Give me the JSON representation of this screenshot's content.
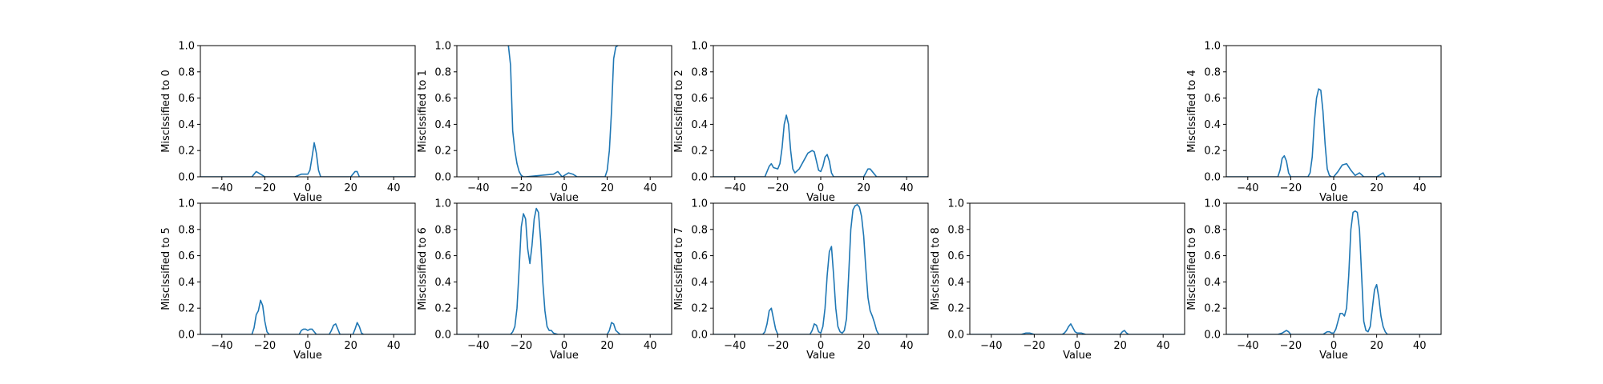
{
  "chart_data": [
    {
      "type": "line",
      "xlabel": "Value",
      "ylabel": "Misclssified to 0",
      "xlim": [
        -50,
        50
      ],
      "ylim": [
        0,
        1
      ],
      "xticks": [
        -40,
        -20,
        0,
        20,
        40
      ],
      "yticks": [
        0.0,
        0.2,
        0.4,
        0.6,
        0.8,
        1.0
      ],
      "color": "#1f77b4",
      "x": [
        -50,
        -26,
        -24,
        -22,
        -20,
        -6,
        -3,
        0,
        1,
        2,
        3,
        4,
        5,
        6,
        8,
        20,
        22,
        23,
        24,
        50
      ],
      "y": [
        0,
        0,
        0.04,
        0.02,
        0,
        0,
        0.02,
        0.02,
        0.05,
        0.15,
        0.26,
        0.18,
        0.05,
        0,
        0,
        0,
        0.04,
        0.04,
        0,
        0
      ]
    },
    {
      "type": "line",
      "xlabel": "Value",
      "ylabel": "Misclssified to 1",
      "xlim": [
        -50,
        50
      ],
      "ylim": [
        0,
        1
      ],
      "xticks": [
        -40,
        -20,
        0,
        20,
        40
      ],
      "yticks": [
        0.0,
        0.2,
        0.4,
        0.6,
        0.8,
        1.0
      ],
      "color": "#1f77b4",
      "x": [
        -26,
        -25,
        -24,
        -23,
        -22,
        -21,
        -20,
        -19,
        -18,
        -5,
        -3,
        -1,
        2,
        4,
        6,
        19,
        20,
        21,
        22,
        23,
        24,
        25
      ],
      "y": [
        1.0,
        0.85,
        0.35,
        0.2,
        0.1,
        0.04,
        0.01,
        0,
        0,
        0.02,
        0.04,
        0,
        0.03,
        0.02,
        0,
        0,
        0.05,
        0.2,
        0.5,
        0.9,
        0.99,
        1.0
      ]
    },
    {
      "type": "line",
      "xlabel": "Value",
      "ylabel": "Misclssified to 2",
      "xlim": [
        -50,
        50
      ],
      "ylim": [
        0,
        1
      ],
      "xticks": [
        -40,
        -20,
        0,
        20,
        40
      ],
      "yticks": [
        0.0,
        0.2,
        0.4,
        0.6,
        0.8,
        1.0
      ],
      "color": "#1f77b4",
      "x": [
        -50,
        -26,
        -24,
        -23,
        -22,
        -20,
        -19,
        -18,
        -17,
        -16,
        -15,
        -14,
        -13,
        -12,
        -10,
        -8,
        -6,
        -4,
        -3,
        -2,
        -1,
        0,
        1,
        2,
        3,
        4,
        5,
        6,
        8,
        20,
        21,
        22,
        23,
        24,
        26,
        50
      ],
      "y": [
        0,
        0,
        0.08,
        0.1,
        0.07,
        0.06,
        0.1,
        0.22,
        0.4,
        0.47,
        0.4,
        0.2,
        0.06,
        0.03,
        0.06,
        0.12,
        0.18,
        0.2,
        0.19,
        0.12,
        0.05,
        0.04,
        0.08,
        0.15,
        0.17,
        0.12,
        0.03,
        0,
        0,
        0,
        0.03,
        0.06,
        0.06,
        0.04,
        0,
        0
      ]
    },
    {
      "type": "line",
      "xlabel": "Value",
      "ylabel": "Misclssified to 4",
      "xlim": [
        -50,
        50
      ],
      "ylim": [
        0,
        1
      ],
      "xticks": [
        -40,
        -20,
        0,
        20,
        40
      ],
      "yticks": [
        0.0,
        0.2,
        0.4,
        0.6,
        0.8,
        1.0
      ],
      "color": "#1f77b4",
      "x": [
        -50,
        -26,
        -25,
        -24,
        -23,
        -22,
        -21,
        -20,
        -12,
        -11,
        -10,
        -9,
        -8,
        -7,
        -6,
        -5,
        -4,
        -3,
        -2,
        -1,
        0,
        2,
        4,
        6,
        8,
        10,
        12,
        14,
        20,
        22,
        23,
        24,
        50
      ],
      "y": [
        0,
        0,
        0.05,
        0.14,
        0.16,
        0.12,
        0.03,
        0,
        0,
        0.03,
        0.15,
        0.42,
        0.6,
        0.67,
        0.66,
        0.5,
        0.25,
        0.06,
        0.01,
        0,
        0,
        0.04,
        0.09,
        0.1,
        0.05,
        0.01,
        0.03,
        0,
        0,
        0.02,
        0.03,
        0,
        0
      ]
    },
    {
      "type": "line",
      "xlabel": "Value",
      "ylabel": "Misclssified to 5",
      "xlim": [
        -50,
        50
      ],
      "ylim": [
        0,
        1
      ],
      "xticks": [
        -40,
        -20,
        0,
        20,
        40
      ],
      "yticks": [
        0.0,
        0.2,
        0.4,
        0.6,
        0.8,
        1.0
      ],
      "color": "#1f77b4",
      "x": [
        -50,
        -26,
        -25,
        -24,
        -23,
        -22,
        -21,
        -20,
        -19,
        -18,
        -4,
        -3,
        -2,
        -1,
        0,
        1,
        2,
        3,
        4,
        10,
        11,
        12,
        13,
        14,
        15,
        21,
        22,
        23,
        24,
        25,
        26,
        50
      ],
      "y": [
        0,
        0,
        0.05,
        0.15,
        0.18,
        0.26,
        0.22,
        0.1,
        0.02,
        0,
        0,
        0.03,
        0.04,
        0.04,
        0.03,
        0.04,
        0.04,
        0.02,
        0,
        0,
        0.03,
        0.07,
        0.08,
        0.04,
        0,
        0,
        0.04,
        0.09,
        0.06,
        0.01,
        0,
        0
      ]
    },
    {
      "type": "line",
      "xlabel": "Value",
      "ylabel": "Misclssified to 6",
      "xlim": [
        -50,
        50
      ],
      "ylim": [
        0,
        1
      ],
      "xticks": [
        -40,
        -20,
        0,
        20,
        40
      ],
      "yticks": [
        0.0,
        0.2,
        0.4,
        0.6,
        0.8,
        1.0
      ],
      "color": "#1f77b4",
      "x": [
        -50,
        -25,
        -24,
        -23,
        -22,
        -21,
        -20,
        -19,
        -18,
        -17,
        -16,
        -15,
        -14,
        -13,
        -12,
        -11,
        -10,
        -9,
        -8,
        -7,
        -6,
        -5,
        -3,
        20,
        21,
        22,
        23,
        24,
        26,
        50
      ],
      "y": [
        0,
        0,
        0.02,
        0.06,
        0.2,
        0.5,
        0.82,
        0.92,
        0.88,
        0.65,
        0.54,
        0.68,
        0.88,
        0.96,
        0.93,
        0.72,
        0.4,
        0.18,
        0.06,
        0.03,
        0.03,
        0.01,
        0,
        0,
        0.03,
        0.09,
        0.08,
        0.03,
        0,
        0
      ]
    },
    {
      "type": "line",
      "xlabel": "Value",
      "ylabel": "Misclssified to 7",
      "xlim": [
        -50,
        50
      ],
      "ylim": [
        0,
        1
      ],
      "xticks": [
        -40,
        -20,
        0,
        20,
        40
      ],
      "yticks": [
        0.0,
        0.2,
        0.4,
        0.6,
        0.8,
        1.0
      ],
      "color": "#1f77b4",
      "x": [
        -50,
        -27,
        -26,
        -25,
        -24,
        -23,
        -22,
        -21,
        -20,
        -5,
        -4,
        -3,
        -2,
        -1,
        0,
        1,
        2,
        3,
        4,
        5,
        6,
        7,
        8,
        9,
        10,
        11,
        12,
        13,
        14,
        15,
        16,
        17,
        18,
        19,
        20,
        21,
        22,
        23,
        24,
        25,
        26,
        27,
        50
      ],
      "y": [
        0,
        0,
        0.02,
        0.08,
        0.18,
        0.2,
        0.12,
        0.04,
        0,
        0,
        0.03,
        0.08,
        0.07,
        0.02,
        0.01,
        0.06,
        0.2,
        0.45,
        0.63,
        0.67,
        0.45,
        0.2,
        0.06,
        0.02,
        0.01,
        0.03,
        0.12,
        0.45,
        0.8,
        0.95,
        0.98,
        0.99,
        0.97,
        0.9,
        0.75,
        0.5,
        0.28,
        0.18,
        0.14,
        0.09,
        0.03,
        0,
        0
      ]
    },
    {
      "type": "line",
      "xlabel": "Value",
      "ylabel": "Misclssified to 8",
      "xlim": [
        -50,
        50
      ],
      "ylim": [
        0,
        1
      ],
      "xticks": [
        -40,
        -20,
        0,
        20,
        40
      ],
      "yticks": [
        0.0,
        0.2,
        0.4,
        0.6,
        0.8,
        1.0
      ],
      "color": "#1f77b4",
      "x": [
        -50,
        -26,
        -24,
        -22,
        -20,
        -7,
        -6,
        -5,
        -4,
        -3,
        -2,
        -1,
        0,
        2,
        4,
        20,
        21,
        22,
        23,
        24,
        50
      ],
      "y": [
        0,
        0,
        0.01,
        0.01,
        0,
        0,
        0.01,
        0.03,
        0.06,
        0.08,
        0.05,
        0.02,
        0.01,
        0.01,
        0,
        0,
        0.02,
        0.03,
        0.01,
        0,
        0
      ]
    },
    {
      "type": "line",
      "xlabel": "Value",
      "ylabel": "Misclssified to 9",
      "xlim": [
        -50,
        50
      ],
      "ylim": [
        0,
        1
      ],
      "xticks": [
        -40,
        -20,
        0,
        20,
        40
      ],
      "yticks": [
        0.0,
        0.2,
        0.4,
        0.6,
        0.8,
        1.0
      ],
      "color": "#1f77b4",
      "x": [
        -50,
        -26,
        -24,
        -23,
        -22,
        -21,
        -20,
        -5,
        -4,
        -3,
        -2,
        -1,
        0,
        1,
        2,
        3,
        4,
        5,
        6,
        7,
        8,
        9,
        10,
        11,
        12,
        13,
        14,
        15,
        16,
        17,
        18,
        19,
        20,
        21,
        22,
        23,
        24,
        25,
        50
      ],
      "y": [
        0,
        0,
        0.01,
        0.02,
        0.03,
        0.02,
        0,
        0,
        0.01,
        0.02,
        0.02,
        0.01,
        0.01,
        0.04,
        0.1,
        0.16,
        0.16,
        0.14,
        0.2,
        0.45,
        0.8,
        0.93,
        0.94,
        0.93,
        0.8,
        0.45,
        0.1,
        0.03,
        0.02,
        0.06,
        0.2,
        0.34,
        0.38,
        0.28,
        0.14,
        0.06,
        0.02,
        0,
        0
      ]
    }
  ]
}
